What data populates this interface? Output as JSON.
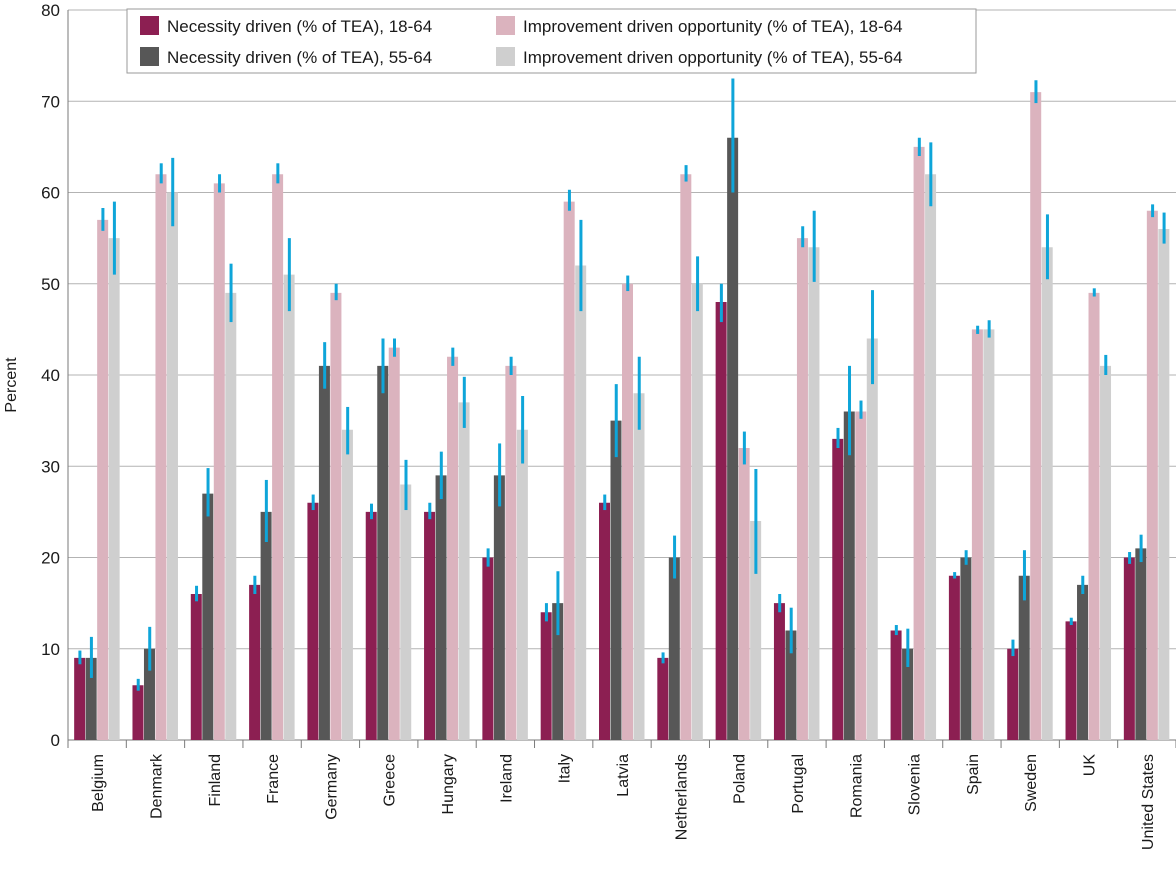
{
  "chart_data": {
    "type": "bar",
    "title": "",
    "xlabel": "",
    "ylabel": "Percent",
    "ylim": [
      0,
      80
    ],
    "yticks": [
      0,
      10,
      20,
      30,
      40,
      50,
      60,
      70,
      80
    ],
    "grid": true,
    "legend_position": "top",
    "categories": [
      "Belgium",
      "Denmark",
      "Finland",
      "France",
      "Germany",
      "Greece",
      "Hungary",
      "Ireland",
      "Italy",
      "Latvia",
      "Netherlands",
      "Poland",
      "Portugal",
      "Romania",
      "Slovenia",
      "Spain",
      "Sweden",
      "UK",
      "United States"
    ],
    "series": [
      {
        "name": "Necessity driven (% of TEA), 18-64",
        "color": "#8c1f52",
        "values": [
          9,
          6,
          16,
          17,
          26,
          25,
          25,
          20,
          14,
          26,
          9,
          48,
          15,
          33,
          12,
          18,
          10,
          13,
          20
        ],
        "error_low": [
          8.3,
          5.4,
          15.2,
          16.0,
          25.2,
          24.2,
          24.2,
          19.0,
          13.0,
          25.2,
          8.4,
          45.8,
          14.0,
          32.0,
          11.5,
          17.7,
          9.2,
          12.6,
          19.3
        ],
        "error_high": [
          9.8,
          6.7,
          16.9,
          18.0,
          26.9,
          25.9,
          26.0,
          21.0,
          15.0,
          26.9,
          9.6,
          50.0,
          16.0,
          34.2,
          12.6,
          18.4,
          11.0,
          13.4,
          20.6
        ]
      },
      {
        "name": "Necessity driven (% of TEA), 55-64",
        "color": "#575757",
        "values": [
          9,
          10,
          27,
          25,
          41,
          41,
          29,
          29,
          15,
          35,
          20,
          66,
          12,
          36,
          10,
          20,
          18,
          17,
          21
        ],
        "error_low": [
          6.8,
          7.6,
          24.5,
          21.7,
          38.5,
          38.0,
          26.4,
          25.6,
          11.5,
          31.0,
          17.7,
          60.0,
          9.5,
          31.2,
          8.0,
          19.2,
          15.3,
          16.0,
          19.5
        ],
        "error_high": [
          11.3,
          12.4,
          29.8,
          28.5,
          43.6,
          44.0,
          31.6,
          32.5,
          18.5,
          39.0,
          22.4,
          72.5,
          14.5,
          41.0,
          12.2,
          20.8,
          20.8,
          18.0,
          22.5
        ]
      },
      {
        "name": "Improvement driven opportunity (% of TEA), 18-64",
        "color": "#dbb3be",
        "values": [
          57,
          62,
          61,
          62,
          49,
          43,
          42,
          41,
          59,
          50,
          62,
          32,
          55,
          36,
          65,
          45,
          71,
          49,
          58
        ],
        "error_low": [
          55.8,
          61.0,
          60.0,
          61.0,
          48.2,
          42.0,
          41.0,
          40.0,
          58.0,
          49.2,
          61.2,
          30.2,
          54.0,
          35.2,
          64.0,
          44.5,
          69.8,
          48.6,
          57.3
        ],
        "error_high": [
          58.3,
          63.2,
          62.0,
          63.2,
          50.0,
          44.0,
          43.0,
          42.0,
          60.3,
          50.9,
          63.0,
          33.8,
          56.3,
          37.2,
          66.0,
          45.4,
          72.3,
          49.5,
          58.7
        ]
      },
      {
        "name": "Improvement driven opportunity (% of TEA), 55-64",
        "color": "#cfcfcf",
        "values": [
          55,
          60,
          49,
          51,
          34,
          28,
          37,
          34,
          52,
          38,
          50,
          24,
          54,
          44,
          62,
          45,
          54,
          41,
          56
        ],
        "error_low": [
          51.0,
          56.3,
          45.8,
          47.0,
          31.3,
          25.2,
          34.2,
          30.3,
          47.0,
          34.0,
          47.0,
          18.2,
          50.2,
          39.0,
          58.5,
          44.1,
          50.5,
          40.0,
          54.4
        ],
        "error_high": [
          59.0,
          63.8,
          52.2,
          55.0,
          36.5,
          30.7,
          39.8,
          37.7,
          57.0,
          42.0,
          53.0,
          29.7,
          58.0,
          49.3,
          65.5,
          46.0,
          57.6,
          42.2,
          57.8
        ]
      }
    ],
    "error_bar_color": "#0ea5d9"
  }
}
